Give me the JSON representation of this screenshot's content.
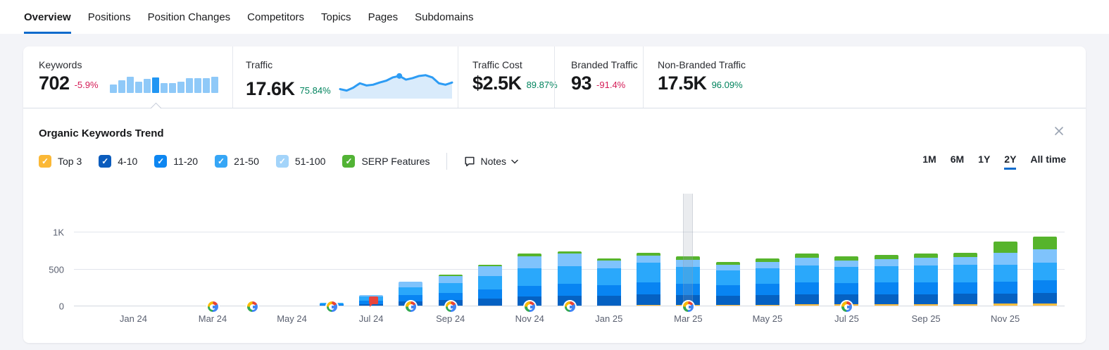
{
  "tabs": [
    {
      "label": "Overview",
      "active": true
    },
    {
      "label": "Positions"
    },
    {
      "label": "Position Changes"
    },
    {
      "label": "Competitors"
    },
    {
      "label": "Topics"
    },
    {
      "label": "Pages"
    },
    {
      "label": "Subdomains"
    }
  ],
  "metrics": [
    {
      "id": "keywords",
      "label": "Keywords",
      "value": "702",
      "change": "-5.9%",
      "change_dir": "down",
      "minibar": {
        "values": [
          12,
          18,
          23,
          16,
          20,
          22,
          14,
          14,
          16,
          21,
          21,
          21,
          23
        ],
        "highlight_index": 5,
        "color": "#8FC9F8",
        "highlight_color": "#2196F3"
      }
    },
    {
      "id": "traffic",
      "label": "Traffic",
      "value": "17.6K",
      "change": "75.84%",
      "change_dir": "up",
      "sparkline": {
        "values": [
          22,
          18,
          26,
          38,
          32,
          34,
          40,
          45,
          54,
          58,
          48,
          52,
          58,
          60,
          54,
          38,
          34,
          40
        ],
        "dot_index": 9,
        "line_color": "#2D9CF4",
        "fill_color": "#D9EBFB"
      }
    },
    {
      "id": "traffic-cost",
      "label": "Traffic Cost",
      "value": "$2.5K",
      "change": "89.87%",
      "change_dir": "up"
    },
    {
      "id": "branded-traffic",
      "label": "Branded Traffic",
      "value": "93",
      "change": "-91.4%",
      "change_dir": "down"
    },
    {
      "id": "non-branded-traffic",
      "label": "Non-Branded Traffic",
      "value": "17.5K",
      "change": "96.09%",
      "change_dir": "up"
    }
  ],
  "trend": {
    "title": "Organic Keywords Trend",
    "filters": [
      {
        "label": "Top 3",
        "color": "#FBB836",
        "checked": true
      },
      {
        "label": "4-10",
        "color": "#0B5CBD",
        "checked": true
      },
      {
        "label": "11-20",
        "color": "#0D86F1",
        "checked": true
      },
      {
        "label": "21-50",
        "color": "#36A6F6",
        "checked": true
      },
      {
        "label": "51-100",
        "color": "#A3D4FA",
        "checked": true
      },
      {
        "label": "SERP Features",
        "color": "#52B335",
        "checked": true
      }
    ],
    "notes_label": "Notes",
    "ranges": [
      {
        "label": "1M"
      },
      {
        "label": "6M"
      },
      {
        "label": "1Y"
      },
      {
        "label": "2Y",
        "active": true
      },
      {
        "label": "All time"
      }
    ]
  },
  "chart_data": {
    "type": "bar",
    "stacked": true,
    "title": "Organic Keywords Trend",
    "ylim": [
      0,
      1500
    ],
    "grid": true,
    "yticks": [
      {
        "label": "0",
        "value": 0
      },
      {
        "label": "500",
        "value": 500
      },
      {
        "label": "1K",
        "value": 1000
      }
    ],
    "series": [
      {
        "name": "Top 3",
        "color": "#FDBE3F"
      },
      {
        "name": "4-10",
        "color": "#0561C2"
      },
      {
        "name": "11-20",
        "color": "#0884F2"
      },
      {
        "name": "21-50",
        "color": "#2AA8FB"
      },
      {
        "name": "51-100",
        "color": "#7FC3FC"
      },
      {
        "name": "SERP Features",
        "color": "#56B42C"
      }
    ],
    "months": [
      {
        "name": "Dec 23",
        "values": [
          0,
          0,
          0,
          0,
          0,
          0
        ]
      },
      {
        "name": "Jan 24",
        "tick": true,
        "values": [
          0,
          0,
          0,
          0,
          0,
          0
        ]
      },
      {
        "name": "Feb 24",
        "values": [
          0,
          0,
          0,
          0,
          0,
          0
        ]
      },
      {
        "name": "Mar 24",
        "tick": true,
        "google_update": true,
        "values": [
          0,
          0,
          0,
          0,
          0,
          0
        ]
      },
      {
        "name": "Apr 24",
        "google_update": true,
        "values": [
          0,
          0,
          0,
          0,
          0,
          0
        ]
      },
      {
        "name": "May 24",
        "tick": true,
        "values": [
          0,
          3,
          3,
          4,
          0,
          0
        ]
      },
      {
        "name": "Jun 24",
        "google_update": true,
        "values": [
          0,
          12,
          16,
          18,
          6,
          0
        ]
      },
      {
        "name": "Jul 24",
        "tick": true,
        "note": true,
        "values": [
          0,
          32,
          45,
          52,
          21,
          0
        ]
      },
      {
        "name": "Aug 24",
        "google_update": true,
        "values": [
          0,
          70,
          80,
          110,
          70,
          0
        ]
      },
      {
        "name": "Sep 24",
        "tick": true,
        "google_update": true,
        "values": [
          0,
          85,
          95,
          130,
          100,
          20
        ]
      },
      {
        "name": "Oct 24",
        "values": [
          8,
          100,
          120,
          180,
          132,
          20
        ]
      },
      {
        "name": "Nov 24",
        "tick": true,
        "google_update": true,
        "values": [
          10,
          120,
          150,
          230,
          170,
          30
        ]
      },
      {
        "name": "Dec 24",
        "google_update": true,
        "values": [
          12,
          130,
          160,
          240,
          173,
          30
        ]
      },
      {
        "name": "Jan 25",
        "tick": true,
        "values": [
          12,
          128,
          150,
          220,
          110,
          30
        ]
      },
      {
        "name": "Feb 25",
        "values": [
          18,
          140,
          165,
          268,
          99,
          30
        ]
      },
      {
        "name": "Mar 25",
        "tick": true,
        "google_update": true,
        "highlighted": true,
        "values": [
          15,
          135,
          155,
          230,
          95,
          50
        ]
      },
      {
        "name": "Apr 25",
        "values": [
          18,
          128,
          140,
          200,
          74,
          40
        ]
      },
      {
        "name": "May 25",
        "tick": true,
        "values": [
          22,
          130,
          150,
          210,
          93,
          40
        ]
      },
      {
        "name": "Jun 25",
        "values": [
          28,
          135,
          160,
          230,
          102,
          60
        ]
      },
      {
        "name": "Jul 25",
        "tick": true,
        "google_update": true,
        "values": [
          28,
          135,
          155,
          215,
          87,
          60
        ]
      },
      {
        "name": "Aug 25",
        "values": [
          28,
          135,
          160,
          220,
          97,
          60
        ]
      },
      {
        "name": "Sep 25",
        "tick": true,
        "values": [
          28,
          135,
          160,
          230,
          102,
          60
        ]
      },
      {
        "name": "Oct 25",
        "values": [
          28,
          140,
          160,
          230,
          107,
          60
        ]
      },
      {
        "name": "Nov 25",
        "tick": true,
        "values": [
          34,
          135,
          165,
          230,
          156,
          160
        ]
      },
      {
        "name": "Dec 25",
        "values": [
          40,
          140,
          170,
          240,
          185,
          170
        ]
      }
    ]
  }
}
